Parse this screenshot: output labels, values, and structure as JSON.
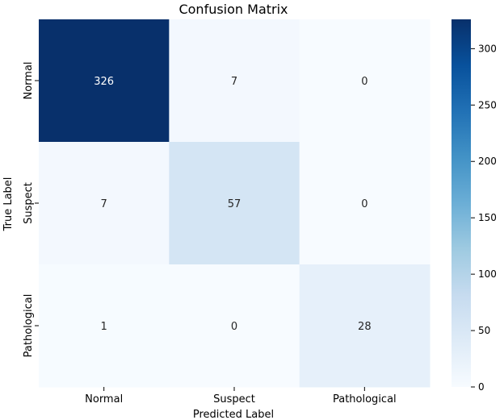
{
  "chart_data": {
    "type": "heatmap",
    "title": "Confusion Matrix",
    "xlabel": "Predicted Label",
    "ylabel": "True Label",
    "x_categories": [
      "Normal",
      "Suspect",
      "Pathological"
    ],
    "y_categories": [
      "Normal",
      "Suspect",
      "Pathological"
    ],
    "values": [
      [
        326,
        7,
        0
      ],
      [
        7,
        57,
        0
      ],
      [
        1,
        0,
        28
      ]
    ],
    "colormap": "Blues",
    "colorbar": {
      "min": 0,
      "max": 326,
      "ticks": [
        0,
        50,
        100,
        150,
        200,
        250,
        300
      ]
    },
    "annotation_colors": {
      "light": "#ffffff",
      "dark": "#262626"
    }
  }
}
